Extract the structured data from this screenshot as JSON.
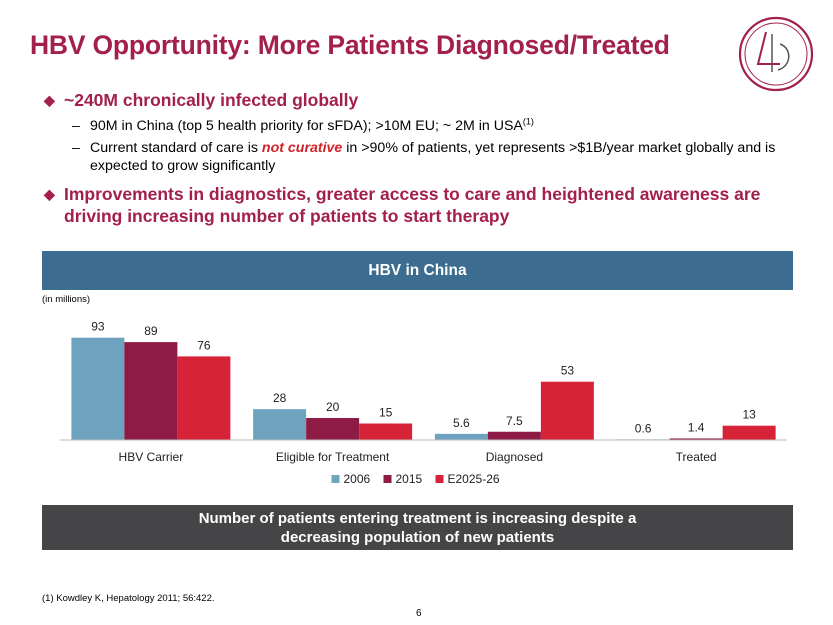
{
  "title": "HBV Opportunity: More Patients Diagnosed/Treated",
  "bullets": [
    {
      "text": "~240M chronically infected globally",
      "subs": [
        {
          "t1": "90M in China  (top 5 health priority for sFDA); >10M EU; ~ 2M in USA",
          "sup": "(1)"
        },
        {
          "pre": "Current standard of care is ",
          "em": "not curative",
          "post": " in >90% of patients, yet represents >$1B/year market globally and is expected to grow significantly"
        }
      ]
    },
    {
      "text": "Improvements in diagnostics, greater access to care and heightened awareness are driving increasing number of patients to start therapy"
    }
  ],
  "panel_title": "HBV in China",
  "units_note": "(in millions)",
  "chart_data": {
    "type": "bar",
    "categories": [
      "HBV Carrier",
      "Eligible for Treatment",
      "Diagnosed",
      "Treated"
    ],
    "series": [
      {
        "name": "2006",
        "values": [
          93,
          28,
          5.6,
          0.6
        ],
        "labels": [
          "93",
          "28",
          "5.6",
          "0.6"
        ],
        "color": "#6EA3BF"
      },
      {
        "name": "2015",
        "values": [
          89,
          20,
          7.5,
          1.4
        ],
        "labels": [
          "89",
          "20",
          "7.5",
          "1.4"
        ],
        "color": "#8E1B45"
      },
      {
        "name": "E2025-26",
        "values": [
          76,
          15,
          53,
          13
        ],
        "labels": [
          "76",
          "15",
          "53",
          "13"
        ],
        "color": "#D62338"
      }
    ],
    "ylim": [
      0,
      100
    ],
    "legend": "bottom"
  },
  "callout": [
    "Number of patients entering treatment is increasing despite a",
    "decreasing population of new patients"
  ],
  "footnote": "(1) Kowdley K, Hepatology 2011; 56:422.",
  "page_number": "6",
  "colors": {
    "title": "#A3204A",
    "panel": "#3C6C8F",
    "callout": "#454547",
    "emphasis": "#D2232A"
  }
}
